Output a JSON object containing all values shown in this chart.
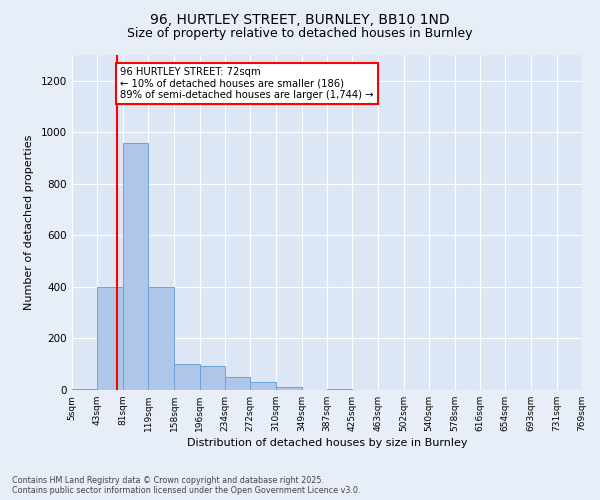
{
  "title1": "96, HURTLEY STREET, BURNLEY, BB10 1ND",
  "title2": "Size of property relative to detached houses in Burnley",
  "xlabel": "Distribution of detached houses by size in Burnley",
  "ylabel": "Number of detached properties",
  "annotation_title": "96 HURTLEY STREET: 72sqm",
  "annotation_line1": "← 10% of detached houses are smaller (186)",
  "annotation_line2": "89% of semi-detached houses are larger (1,744) →",
  "footer1": "Contains HM Land Registry data © Crown copyright and database right 2025.",
  "footer2": "Contains public sector information licensed under the Open Government Licence v3.0.",
  "bins": [
    "5sqm",
    "43sqm",
    "81sqm",
    "119sqm",
    "158sqm",
    "196sqm",
    "234sqm",
    "272sqm",
    "310sqm",
    "349sqm",
    "387sqm",
    "425sqm",
    "463sqm",
    "502sqm",
    "540sqm",
    "578sqm",
    "616sqm",
    "654sqm",
    "693sqm",
    "731sqm",
    "769sqm"
  ],
  "bar_heights": [
    5,
    400,
    960,
    400,
    100,
    95,
    50,
    30,
    10,
    0,
    5,
    0,
    0,
    0,
    0,
    0,
    0,
    0,
    0,
    0
  ],
  "bar_color": "#aec6e8",
  "bar_edge_color": "#6ba3d6",
  "property_line_x": 72,
  "bin_edges": [
    5,
    43,
    81,
    119,
    158,
    196,
    234,
    272,
    310,
    349,
    387,
    425,
    463,
    502,
    540,
    578,
    616,
    654,
    693,
    731,
    769
  ],
  "ylim": [
    0,
    1300
  ],
  "background_color": "#e8eef7",
  "plot_background": "#dce6f5",
  "grid_color": "#ffffff",
  "title_fontsize": 10,
  "subtitle_fontsize": 9
}
